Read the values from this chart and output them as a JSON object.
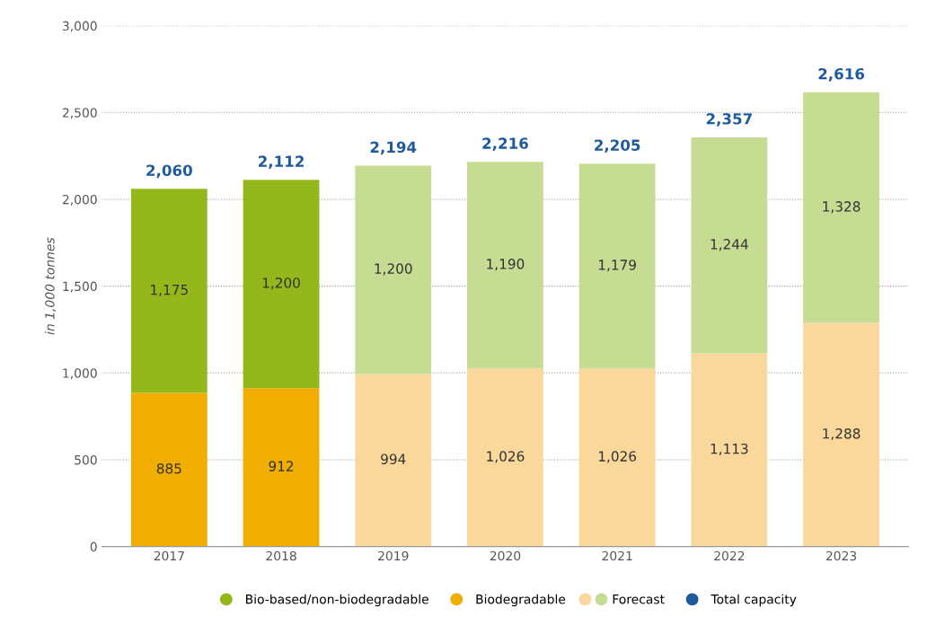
{
  "chart_data": {
    "type": "bar",
    "stacked": true,
    "ylabel": "in 1,000 tonnes",
    "categories": [
      "2017",
      "2018",
      "2019",
      "2020",
      "2021",
      "2022",
      "2023"
    ],
    "series": [
      {
        "name": "Biodegradable",
        "colors": [
          "#f2ae00",
          "#f2ae00",
          "#fad79b",
          "#fad79b",
          "#fad79b",
          "#fad79b",
          "#fad79b"
        ],
        "values": [
          885,
          912,
          994,
          1026,
          1026,
          1113,
          1288
        ],
        "value_labels": [
          "885",
          "912",
          "994",
          "1,026",
          "1,026",
          "1,113",
          "1,288"
        ]
      },
      {
        "name": "Bio-based/non-biodegradable",
        "colors": [
          "#94b71c",
          "#94b71c",
          "#c6dc92",
          "#c6dc92",
          "#c6dc92",
          "#c6dc92",
          "#c6dc92"
        ],
        "values": [
          1175,
          1200,
          1200,
          1190,
          1179,
          1244,
          1328
        ],
        "value_labels": [
          "1,175",
          "1,200",
          "1,200",
          "1,190",
          "1,179",
          "1,244",
          "1,328"
        ]
      }
    ],
    "totals": [
      "2,060",
      "2,112",
      "2,194",
      "2,216",
      "2,205",
      "2,357",
      "2,616"
    ],
    "annotations": [
      "Forecast",
      "Total capacity"
    ],
    "ylim": [
      0,
      3000
    ],
    "yticks": [
      0,
      500,
      {
        "value": 1000,
        "label": "1,000"
      },
      {
        "value": 1500,
        "label": "1,500"
      },
      {
        "value": 2000,
        "label": "2,000"
      },
      {
        "value": 2500,
        "label": "2,500"
      },
      {
        "value": 3000,
        "label": "3,000"
      }
    ],
    "grid": "y",
    "legend": "bottom"
  }
}
